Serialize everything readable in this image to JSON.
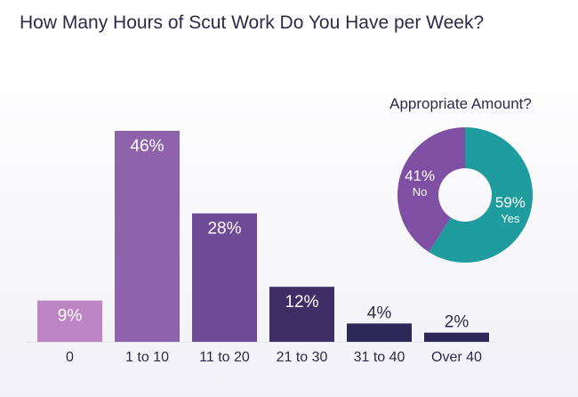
{
  "title": "How Many Hours of Scut Work Do You Have per Week?",
  "chart_data": [
    {
      "type": "bar",
      "categories": [
        "0",
        "1 to 10",
        "11 to 20",
        "21 to 30",
        "31 to 40",
        "Over 40"
      ],
      "values": [
        9,
        46,
        28,
        12,
        4,
        2
      ],
      "value_labels": [
        "9%",
        "46%",
        "28%",
        "12%",
        "4%",
        "2%"
      ],
      "ylim": [
        0,
        46
      ],
      "grid": false,
      "bar_colors": [
        "#bd85c3",
        "#8e63ab",
        "#6e4a97",
        "#3f2d66",
        "#2e2858",
        "#2e2858"
      ]
    },
    {
      "type": "pie",
      "variant": "donut",
      "title": "Appropriate Amount?",
      "slices": [
        {
          "label": "Yes",
          "value": 59,
          "value_label": "59%",
          "color": "#1f9c9e"
        },
        {
          "label": "No",
          "value": 41,
          "value_label": "41%",
          "color": "#7e4fa2"
        }
      ]
    }
  ]
}
